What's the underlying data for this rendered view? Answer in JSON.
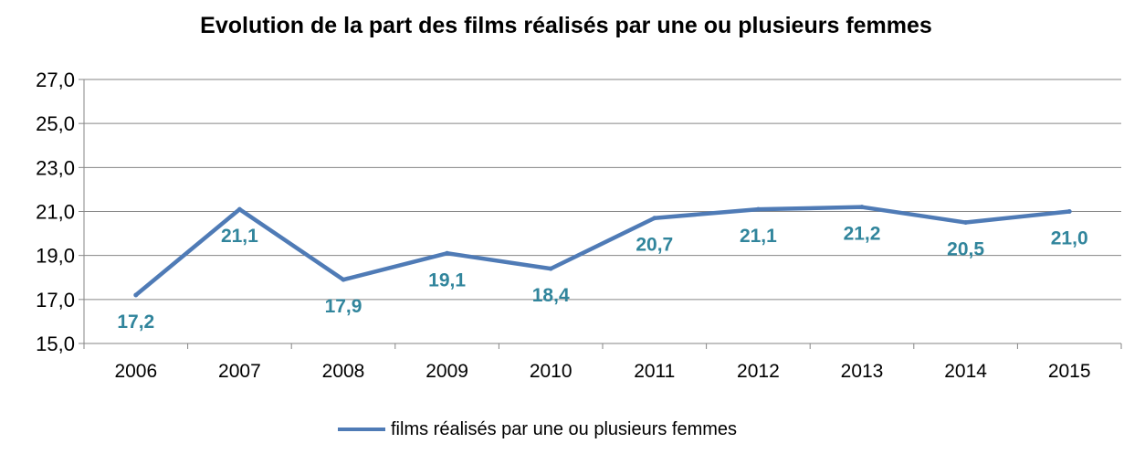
{
  "chart_data": {
    "type": "line",
    "title": "Evolution de la part des films réalisés par une ou plusieurs femmes",
    "xlabel": "",
    "ylabel": "",
    "categories": [
      "2006",
      "2007",
      "2008",
      "2009",
      "2010",
      "2011",
      "2012",
      "2013",
      "2014",
      "2015"
    ],
    "series": [
      {
        "name": "films réalisés par une ou plusieurs femmes",
        "values": [
          17.2,
          21.1,
          17.9,
          19.1,
          18.4,
          20.7,
          21.1,
          21.2,
          20.5,
          21.0
        ],
        "labels": [
          "17,2",
          "21,1",
          "17,9",
          "19,1",
          "18,4",
          "20,7",
          "21,1",
          "21,2",
          "20,5",
          "21,0"
        ],
        "color": "#4f7bb6",
        "label_color": "#31859c"
      }
    ],
    "ylim": [
      15,
      27
    ],
    "yticks": [
      15,
      17,
      19,
      21,
      23,
      25,
      27
    ],
    "ytick_labels": [
      "15,0",
      "17,0",
      "19,0",
      "21,0",
      "23,0",
      "25,0",
      "27,0"
    ],
    "grid": true,
    "legend": "bottom"
  }
}
